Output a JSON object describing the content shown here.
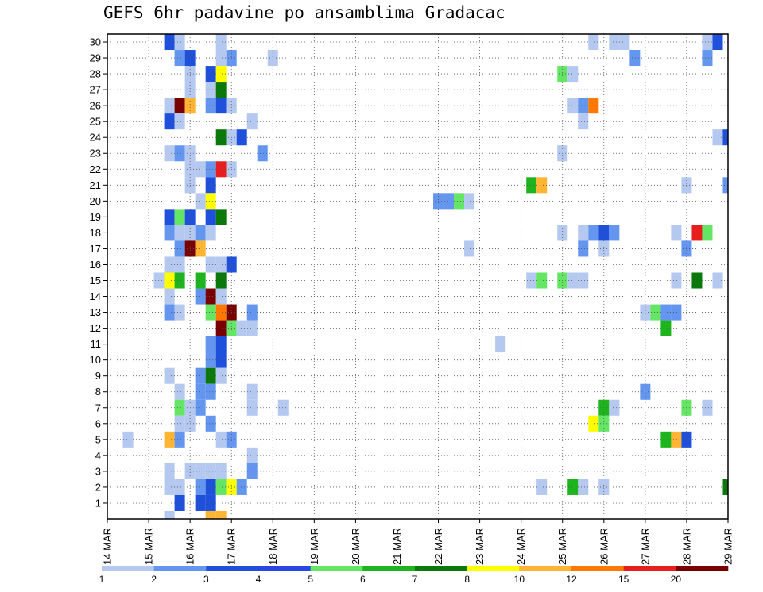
{
  "chart_data": {
    "type": "heatmap",
    "title": "GEFS 6hr padavine po ansamblima Gradacac",
    "x_tick_labels": [
      "14 MAR",
      "15 MAR",
      "16 MAR",
      "17 MAR",
      "18 MAR",
      "19 MAR",
      "20 MAR",
      "21 MAR",
      "22 MAR",
      "23 MAR",
      "24 MAR",
      "25 MAR",
      "26 MAR",
      "27 MAR",
      "28 MAR",
      "29 MAR"
    ],
    "x_steps_per_day": 4,
    "x_range_steps": [
      0,
      60
    ],
    "y_tick_labels": [
      "1",
      "2",
      "3",
      "4",
      "5",
      "6",
      "7",
      "8",
      "9",
      "10",
      "11",
      "12",
      "13",
      "14",
      "15",
      "16",
      "17",
      "18",
      "19",
      "20",
      "21",
      "22",
      "23",
      "24",
      "25",
      "26",
      "27",
      "28",
      "29",
      "30"
    ],
    "y_range": [
      0,
      30
    ],
    "grid": "dotted",
    "legend": {
      "placement": "bottom",
      "labels": [
        "1",
        "2",
        "3",
        "4",
        "5",
        "6",
        "7",
        "8",
        "10",
        "12",
        "15",
        "20"
      ],
      "colors": [
        "#b4c8f0",
        "#6496f0",
        "#1e50dc",
        "#2846e6",
        "#64e664",
        "#1eb41e",
        "#0a780a",
        "#ffff00",
        "#ffb432",
        "#ff7800",
        "#e61e1e",
        "#780000"
      ]
    },
    "level_colors": [
      "#b4c8f0",
      "#6496f0",
      "#1e50dc",
      "#64e664",
      "#1eb41e",
      "#0a780a",
      "#ffff00",
      "#ffb432",
      "#ff7800",
      "#e61e1e",
      "#780000"
    ],
    "series": [
      {
        "member": 30,
        "cells": [
          [
            6,
            3
          ],
          [
            7,
            1
          ],
          [
            11,
            1
          ],
          [
            47,
            1
          ],
          [
            49,
            1
          ],
          [
            50,
            1
          ],
          [
            58,
            1
          ],
          [
            59,
            3
          ]
        ]
      },
      {
        "member": 29,
        "cells": [
          [
            7,
            2
          ],
          [
            8,
            3
          ],
          [
            11,
            1
          ],
          [
            12,
            2
          ],
          [
            16,
            1
          ],
          [
            51,
            2
          ],
          [
            58,
            2
          ]
        ]
      },
      {
        "member": 28,
        "cells": [
          [
            8,
            1
          ],
          [
            10,
            3
          ],
          [
            11,
            7
          ],
          [
            44,
            4
          ],
          [
            45,
            1
          ]
        ]
      },
      {
        "member": 27,
        "cells": [
          [
            8,
            1
          ],
          [
            10,
            1
          ],
          [
            11,
            6
          ]
        ]
      },
      {
        "member": 26,
        "cells": [
          [
            6,
            1
          ],
          [
            7,
            11
          ],
          [
            8,
            8
          ],
          [
            10,
            2
          ],
          [
            11,
            3
          ],
          [
            12,
            1
          ],
          [
            45,
            1
          ],
          [
            46,
            2
          ],
          [
            47,
            9
          ]
        ]
      },
      {
        "member": 25,
        "cells": [
          [
            6,
            3
          ],
          [
            7,
            1
          ],
          [
            14,
            1
          ],
          [
            46,
            1
          ]
        ]
      },
      {
        "member": 24,
        "cells": [
          [
            11,
            6
          ],
          [
            12,
            1
          ],
          [
            13,
            3
          ],
          [
            59,
            1
          ],
          [
            60,
            3
          ]
        ]
      },
      {
        "member": 23,
        "cells": [
          [
            6,
            1
          ],
          [
            7,
            2
          ],
          [
            8,
            1
          ],
          [
            15,
            2
          ],
          [
            44,
            1
          ]
        ]
      },
      {
        "member": 22,
        "cells": [
          [
            8,
            1
          ],
          [
            9,
            1
          ],
          [
            10,
            2
          ],
          [
            11,
            10
          ],
          [
            12,
            1
          ]
        ]
      },
      {
        "member": 21,
        "cells": [
          [
            8,
            1
          ],
          [
            10,
            3
          ],
          [
            41,
            5
          ],
          [
            42,
            8
          ],
          [
            56,
            1
          ],
          [
            60,
            2
          ]
        ]
      },
      {
        "member": 20,
        "cells": [
          [
            9,
            1
          ],
          [
            10,
            7
          ],
          [
            32,
            2
          ],
          [
            33,
            2
          ],
          [
            34,
            4
          ],
          [
            35,
            1
          ]
        ]
      },
      {
        "member": 19,
        "cells": [
          [
            6,
            3
          ],
          [
            7,
            4
          ],
          [
            8,
            3
          ],
          [
            10,
            3
          ],
          [
            11,
            6
          ]
        ]
      },
      {
        "member": 18,
        "cells": [
          [
            6,
            2
          ],
          [
            7,
            1
          ],
          [
            8,
            1
          ],
          [
            9,
            2
          ],
          [
            10,
            1
          ],
          [
            44,
            1
          ],
          [
            46,
            1
          ],
          [
            47,
            2
          ],
          [
            48,
            3
          ],
          [
            49,
            2
          ],
          [
            55,
            1
          ],
          [
            57,
            10
          ],
          [
            58,
            4
          ]
        ]
      },
      {
        "member": 17,
        "cells": [
          [
            7,
            2
          ],
          [
            8,
            11
          ],
          [
            9,
            8
          ],
          [
            35,
            1
          ],
          [
            46,
            2
          ],
          [
            48,
            1
          ],
          [
            56,
            2
          ]
        ]
      },
      {
        "member": 16,
        "cells": [
          [
            6,
            1
          ],
          [
            7,
            1
          ],
          [
            10,
            1
          ],
          [
            11,
            1
          ],
          [
            12,
            3
          ]
        ]
      },
      {
        "member": 15,
        "cells": [
          [
            5,
            1
          ],
          [
            6,
            7
          ],
          [
            7,
            5
          ],
          [
            9,
            5
          ],
          [
            11,
            6
          ],
          [
            41,
            1
          ],
          [
            42,
            4
          ],
          [
            44,
            4
          ],
          [
            45,
            1
          ],
          [
            46,
            1
          ],
          [
            55,
            1
          ],
          [
            57,
            6
          ],
          [
            59,
            1
          ]
        ]
      },
      {
        "member": 14,
        "cells": [
          [
            6,
            1
          ],
          [
            9,
            2
          ],
          [
            10,
            11
          ],
          [
            11,
            1
          ]
        ]
      },
      {
        "member": 13,
        "cells": [
          [
            6,
            2
          ],
          [
            7,
            1
          ],
          [
            10,
            4
          ],
          [
            11,
            9
          ],
          [
            12,
            11
          ],
          [
            14,
            2
          ],
          [
            52,
            1
          ],
          [
            53,
            4
          ],
          [
            54,
            2
          ],
          [
            55,
            2
          ]
        ]
      },
      {
        "member": 12,
        "cells": [
          [
            11,
            11
          ],
          [
            12,
            4
          ],
          [
            13,
            1
          ],
          [
            14,
            1
          ],
          [
            54,
            5
          ]
        ]
      },
      {
        "member": 11,
        "cells": [
          [
            10,
            2
          ],
          [
            11,
            3
          ],
          [
            38,
            1
          ]
        ]
      },
      {
        "member": 10,
        "cells": [
          [
            10,
            2
          ],
          [
            11,
            3
          ]
        ]
      },
      {
        "member": 9,
        "cells": [
          [
            6,
            1
          ],
          [
            9,
            2
          ],
          [
            10,
            6
          ],
          [
            11,
            1
          ]
        ]
      },
      {
        "member": 8,
        "cells": [
          [
            7,
            1
          ],
          [
            9,
            2
          ],
          [
            10,
            2
          ],
          [
            14,
            1
          ],
          [
            52,
            2
          ]
        ]
      },
      {
        "member": 7,
        "cells": [
          [
            7,
            4
          ],
          [
            8,
            1
          ],
          [
            9,
            2
          ],
          [
            14,
            1
          ],
          [
            17,
            1
          ],
          [
            48,
            5
          ],
          [
            49,
            1
          ],
          [
            56,
            4
          ],
          [
            58,
            1
          ]
        ]
      },
      {
        "member": 6,
        "cells": [
          [
            7,
            1
          ],
          [
            8,
            1
          ],
          [
            10,
            2
          ],
          [
            47,
            7
          ],
          [
            48,
            4
          ]
        ]
      },
      {
        "member": 5,
        "cells": [
          [
            2,
            1
          ],
          [
            6,
            8
          ],
          [
            7,
            2
          ],
          [
            11,
            1
          ],
          [
            12,
            2
          ],
          [
            54,
            5
          ],
          [
            55,
            8
          ],
          [
            56,
            3
          ]
        ]
      },
      {
        "member": 4,
        "cells": [
          [
            14,
            1
          ]
        ]
      },
      {
        "member": 3,
        "cells": [
          [
            6,
            1
          ],
          [
            8,
            1
          ],
          [
            9,
            1
          ],
          [
            10,
            1
          ],
          [
            11,
            1
          ],
          [
            14,
            2
          ]
        ]
      },
      {
        "member": 2,
        "cells": [
          [
            6,
            1
          ],
          [
            7,
            1
          ],
          [
            9,
            2
          ],
          [
            10,
            3
          ],
          [
            11,
            4
          ],
          [
            12,
            7
          ],
          [
            13,
            2
          ],
          [
            42,
            1
          ],
          [
            45,
            5
          ],
          [
            46,
            1
          ],
          [
            48,
            1
          ],
          [
            60,
            6
          ]
        ]
      },
      {
        "member": 1,
        "cells": [
          [
            7,
            3
          ],
          [
            9,
            3
          ],
          [
            10,
            3
          ]
        ]
      },
      {
        "member": 0,
        "cells": [
          [
            6,
            1
          ],
          [
            10,
            8
          ],
          [
            11,
            8
          ]
        ]
      }
    ]
  }
}
